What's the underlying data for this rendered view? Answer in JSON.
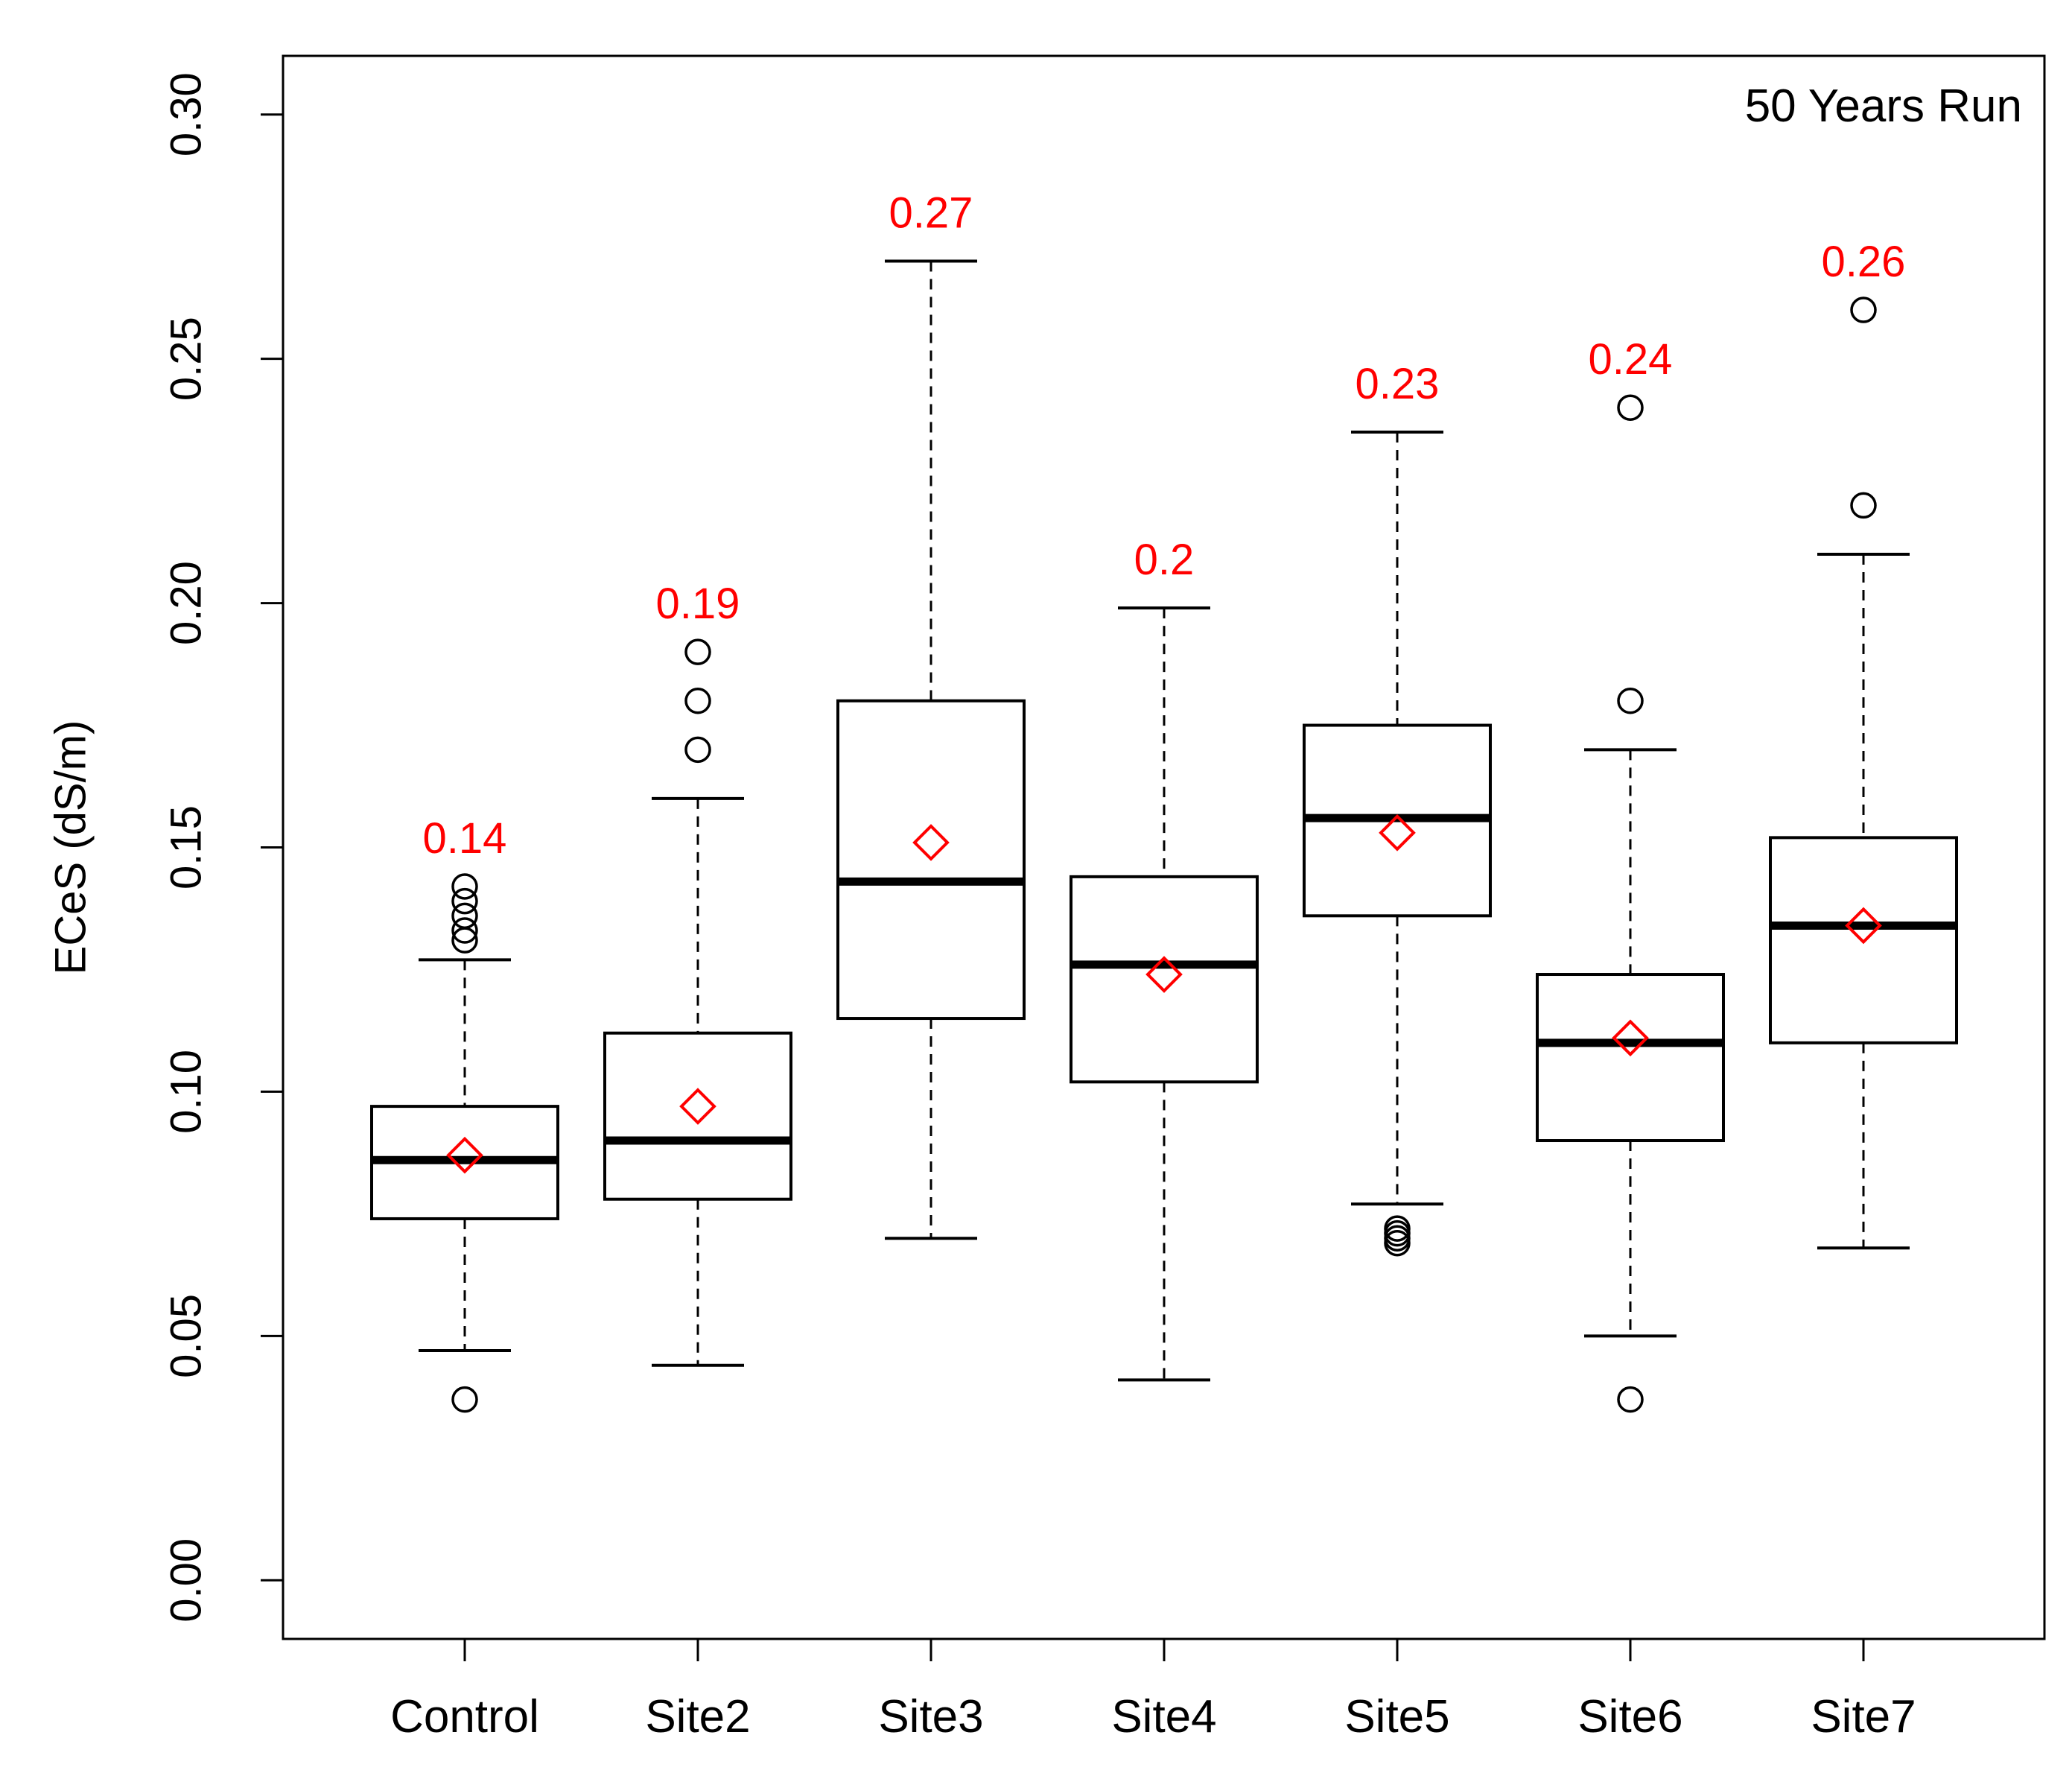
{
  "chart_data": {
    "type": "boxplot",
    "annotation": "50 Years Run",
    "ylabel": "ECeS (dS/m)",
    "xlabel": "",
    "ylim": [
      -0.012,
      0.312
    ],
    "yticks": [
      "0.00",
      "0.05",
      "0.10",
      "0.15",
      "0.20",
      "0.25",
      "0.30"
    ],
    "categories": [
      "Control",
      "Site2",
      "Site3",
      "Site4",
      "Site5",
      "Site6",
      "Site7"
    ],
    "series": [
      {
        "name": "Control",
        "whisker_low": 0.047,
        "q1": 0.074,
        "median": 0.086,
        "q3": 0.097,
        "whisker_high": 0.127,
        "mean": 0.087,
        "outliers": [
          0.037,
          0.131,
          0.133,
          0.136,
          0.139,
          0.142
        ],
        "max_label": "0.14"
      },
      {
        "name": "Site2",
        "whisker_low": 0.044,
        "q1": 0.078,
        "median": 0.09,
        "q3": 0.112,
        "whisker_high": 0.16,
        "mean": 0.097,
        "outliers": [
          0.17,
          0.18,
          0.19
        ],
        "max_label": "0.19"
      },
      {
        "name": "Site3",
        "whisker_low": 0.07,
        "q1": 0.115,
        "median": 0.143,
        "q3": 0.18,
        "whisker_high": 0.27,
        "mean": 0.151,
        "outliers": [],
        "max_label": "0.27"
      },
      {
        "name": "Site4",
        "whisker_low": 0.041,
        "q1": 0.102,
        "median": 0.126,
        "q3": 0.144,
        "whisker_high": 0.199,
        "mean": 0.124,
        "outliers": [],
        "max_label": "0.2"
      },
      {
        "name": "Site5",
        "whisker_low": 0.077,
        "q1": 0.136,
        "median": 0.156,
        "q3": 0.175,
        "whisker_high": 0.235,
        "mean": 0.153,
        "outliers": [
          0.069,
          0.07,
          0.071,
          0.072
        ],
        "max_label": "0.23"
      },
      {
        "name": "Site6",
        "whisker_low": 0.05,
        "q1": 0.09,
        "median": 0.11,
        "q3": 0.124,
        "whisker_high": 0.17,
        "mean": 0.111,
        "outliers": [
          0.037,
          0.18,
          0.24
        ],
        "max_label": "0.24"
      },
      {
        "name": "Site7",
        "whisker_low": 0.068,
        "q1": 0.11,
        "median": 0.134,
        "q3": 0.152,
        "whisker_high": 0.21,
        "mean": 0.134,
        "outliers": [
          0.22,
          0.26
        ],
        "max_label": "0.26"
      }
    ],
    "colors": {
      "box": "#000000",
      "mean_marker": "#ff0000",
      "max_label": "#ff0000"
    },
    "mean_marker_shape": "diamond",
    "grid": false
  }
}
